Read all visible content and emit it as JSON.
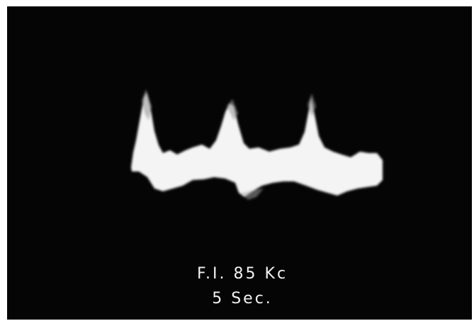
{
  "caption": {
    "line1": "F.I. 85 Kc",
    "line2": "5 Sec."
  }
}
